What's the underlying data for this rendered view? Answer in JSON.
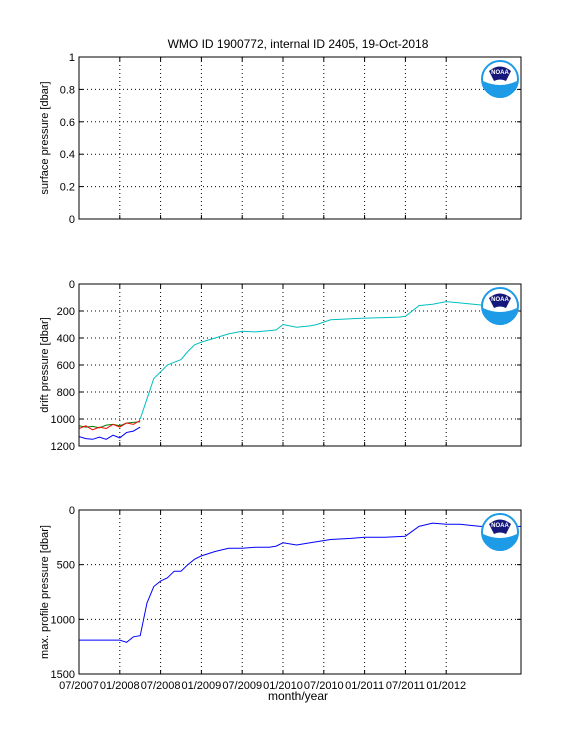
{
  "figure": {
    "title": "WMO ID 1900772, internal ID 2405, 19-Oct-2018",
    "xlabel": "month/year",
    "logo_text": "NOAA"
  },
  "colors": {
    "axis": "#000000",
    "grid": "#000000",
    "series_blue": "#0000ff",
    "series_green": "#008000",
    "series_red": "#ff0000",
    "series_cyan": "#00bfbf",
    "series_magenta": "#bf00bf",
    "logo_navy": "#16177a",
    "logo_sky": "#1e9be6"
  },
  "chart_data": [
    {
      "type": "line",
      "title": "",
      "xlabel": "",
      "ylabel": "surface pressure [dbar]",
      "xlim": [
        "2007-07",
        "2012-12"
      ],
      "ylim": [
        0,
        1
      ],
      "y_reversed": false,
      "grid": "dotted",
      "x_tick_labels": [],
      "y_ticks": [
        0,
        0.2,
        0.4,
        0.6,
        0.8,
        1
      ],
      "y_tick_labels": [
        "0",
        "0.2",
        "0.4",
        "0.6",
        "0.8",
        "1"
      ],
      "series": []
    },
    {
      "type": "line",
      "title": "",
      "xlabel": "",
      "ylabel": "drift pressure [dbar]",
      "xlim": [
        "2007-07",
        "2012-12"
      ],
      "ylim": [
        0,
        1200
      ],
      "y_reversed": true,
      "grid": "dotted",
      "x_tick_labels": [],
      "y_ticks": [
        0,
        200,
        400,
        600,
        800,
        1000,
        1200
      ],
      "y_tick_labels": [
        "0",
        "200",
        "400",
        "600",
        "800",
        "1000",
        "1200"
      ],
      "series": [
        {
          "color": "series_blue",
          "x": [
            "2007-07",
            "2007-08",
            "2007-09",
            "2007-10",
            "2007-11",
            "2007-12",
            "2008-01",
            "2008-02",
            "2008-03",
            "2008-04"
          ],
          "y": [
            1130,
            1145,
            1150,
            1135,
            1150,
            1120,
            1140,
            1100,
            1090,
            1060
          ]
        },
        {
          "color": "series_green",
          "x": [
            "2007-07",
            "2007-08",
            "2007-09",
            "2007-10",
            "2007-11",
            "2007-12",
            "2008-01",
            "2008-02",
            "2008-03",
            "2008-04"
          ],
          "y": [
            1050,
            1060,
            1055,
            1065,
            1045,
            1040,
            1050,
            1030,
            1025,
            1020
          ]
        },
        {
          "color": "series_red",
          "x": [
            "2007-07",
            "2007-08",
            "2007-09",
            "2007-10",
            "2007-11",
            "2007-12",
            "2008-01",
            "2008-02",
            "2008-03",
            "2008-04"
          ],
          "y": [
            1070,
            1050,
            1080,
            1060,
            1070,
            1040,
            1060,
            1030,
            1040,
            1010
          ]
        },
        {
          "color": "series_cyan",
          "x": [
            "2008-04",
            "2008-05",
            "2008-06",
            "2008-07",
            "2008-08",
            "2008-09",
            "2008-10",
            "2008-11",
            "2008-12",
            "2009-01",
            "2009-03",
            "2009-05",
            "2009-07",
            "2009-09",
            "2009-11",
            "2009-12",
            "2010-01",
            "2010-03",
            "2010-05",
            "2010-06",
            "2010-08",
            "2010-10",
            "2010-12",
            "2011-03",
            "2011-06",
            "2011-07",
            "2011-09",
            "2011-11",
            "2012-01",
            "2012-03",
            "2012-05",
            "2012-07",
            "2012-09"
          ],
          "y": [
            1000,
            850,
            700,
            650,
            600,
            580,
            560,
            500,
            450,
            430,
            400,
            370,
            350,
            355,
            345,
            340,
            300,
            320,
            310,
            300,
            265,
            260,
            255,
            250,
            245,
            240,
            160,
            150,
            130,
            140,
            150,
            160,
            170
          ]
        }
      ]
    },
    {
      "type": "line",
      "title": "",
      "xlabel": "month/year",
      "ylabel": "max. profile pressure [dbar]",
      "xlim": [
        "2007-07",
        "2012-12"
      ],
      "ylim": [
        0,
        1500
      ],
      "y_reversed": true,
      "grid": "dotted",
      "x_tick_labels": [
        "07/2007",
        "01/2008",
        "07/2008",
        "01/2009",
        "07/2009",
        "01/2010",
        "07/2010",
        "01/2011",
        "07/2011",
        "01/2012"
      ],
      "y_ticks": [
        0,
        500,
        1000,
        1500
      ],
      "y_tick_labels": [
        "0",
        "500",
        "1000",
        "1500"
      ],
      "series": [
        {
          "color": "series_blue",
          "x": [
            "2007-07",
            "2007-10",
            "2008-01",
            "2008-02",
            "2008-03",
            "2008-04",
            "2008-05",
            "2008-06",
            "2008-07",
            "2008-08",
            "2008-09",
            "2008-10",
            "2008-11",
            "2008-12",
            "2009-01",
            "2009-03",
            "2009-05",
            "2009-07",
            "2009-09",
            "2009-11",
            "2009-12",
            "2010-01",
            "2010-03",
            "2010-05",
            "2010-08",
            "2010-11",
            "2011-01",
            "2011-04",
            "2011-07",
            "2011-09",
            "2011-11",
            "2012-01",
            "2012-03",
            "2012-06",
            "2012-09",
            "2012-12"
          ],
          "y": [
            1190,
            1190,
            1190,
            1210,
            1160,
            1150,
            850,
            700,
            650,
            620,
            560,
            560,
            500,
            450,
            420,
            380,
            350,
            350,
            340,
            340,
            330,
            300,
            320,
            300,
            270,
            260,
            250,
            250,
            240,
            150,
            120,
            130,
            130,
            150,
            150,
            150
          ]
        }
      ]
    }
  ]
}
